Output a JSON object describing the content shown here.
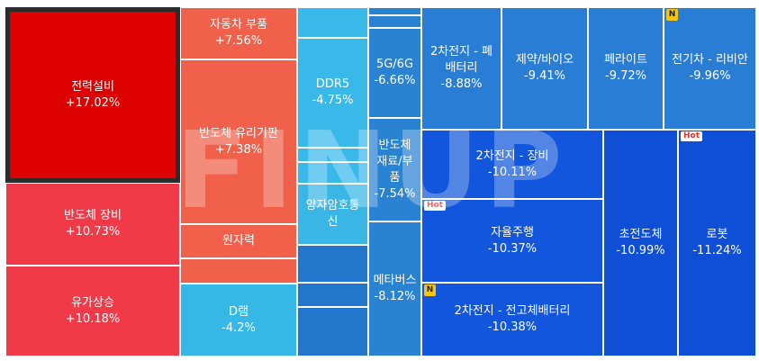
{
  "watermark": "FINUP",
  "tiles": [
    {
      "name": "전력설비",
      "change": "+17.02%",
      "color": "#dd0000",
      "selected": true
    },
    {
      "name": "자동차 부품",
      "change": "+7.56%",
      "color": "#f0604a"
    },
    {
      "name": "반도체 유리기판",
      "change": "+7.38%",
      "color": "#f0604a"
    },
    {
      "name": "원자력",
      "change": "",
      "color": "#f0604a"
    },
    {
      "name": "",
      "change": "",
      "color": "#f0604a"
    },
    {
      "name": "반도체 장비",
      "change": "+10.73%",
      "color": "#f03a48"
    },
    {
      "name": "유가상승",
      "change": "+10.18%",
      "color": "#f03a48"
    },
    {
      "name": "D램",
      "change": "-4.2%",
      "color": "#36b8e6"
    },
    {
      "name": "",
      "change": "",
      "color": "#39b9ea"
    },
    {
      "name": "DDR5",
      "change": "-4.75%",
      "color": "#39b9ea"
    },
    {
      "name": "",
      "change": "",
      "color": "#39b9ea"
    },
    {
      "name": "",
      "change": "",
      "color": "#39b9ea"
    },
    {
      "name": "양자암호통신",
      "change": "",
      "color": "#3ab6e6"
    },
    {
      "name": "",
      "change": "",
      "color": "#2277cc"
    },
    {
      "name": "",
      "change": "",
      "color": "#2277cc"
    },
    {
      "name": "",
      "change": "",
      "color": "#2277cc"
    },
    {
      "name": "",
      "change": "",
      "color": "#2a82d2"
    },
    {
      "name": "",
      "change": "",
      "color": "#2a82d2"
    },
    {
      "name": "5G/6G",
      "change": "-6.66%",
      "color": "#2a82d2"
    },
    {
      "name": "반도체 재료/부품",
      "change": "-7.54%",
      "color": "#2a82d2"
    },
    {
      "name": "메타버스",
      "change": "-8.12%",
      "color": "#2a82d2"
    },
    {
      "name": "2차전지 - 폐배터리",
      "change": "-8.88%",
      "color": "#2a7dd4"
    },
    {
      "name": "제약/바이오",
      "change": "-9.41%",
      "color": "#2a7dd4"
    },
    {
      "name": "페라이트",
      "change": "-9.72%",
      "color": "#2a7dd4"
    },
    {
      "name": "전기차 - 리비안",
      "change": "-9.96%",
      "color": "#2a7dd4",
      "badge": "N"
    },
    {
      "name": "2차전지 - 장비",
      "change": "-10.11%",
      "color": "#1156dc"
    },
    {
      "name": "자율주행",
      "change": "-10.37%",
      "color": "#1156dc",
      "badge": "Hot"
    },
    {
      "name": "2차전지 - 전고체배터리",
      "change": "-10.38%",
      "color": "#1156dc",
      "badge": "N"
    },
    {
      "name": "초전도체",
      "change": "-10.99%",
      "color": "#0e4fd6"
    },
    {
      "name": "로봇",
      "change": "-11.24%",
      "color": "#0e4fd6",
      "badge": "Hot"
    }
  ]
}
